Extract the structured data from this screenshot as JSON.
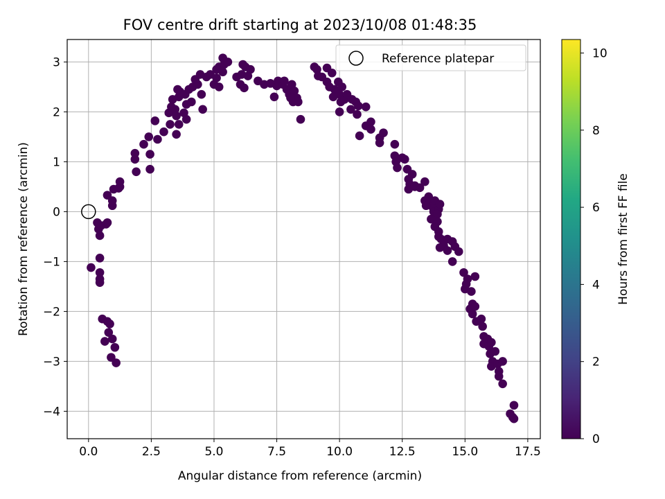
{
  "chart_data": {
    "type": "scatter",
    "title": "FOV centre drift starting at 2023/10/08 01:48:35",
    "xlabel": "Angular distance from reference (arcmin)",
    "ylabel": "Rotation from reference (arcmin)",
    "xlim": [
      -0.85,
      18.0
    ],
    "ylim": [
      -4.55,
      3.45
    ],
    "xticks": [
      "0.0",
      "2.5",
      "5.0",
      "7.5",
      "10.0",
      "12.5",
      "15.0",
      "17.5"
    ],
    "xtick_values": [
      0,
      2.5,
      5,
      7.5,
      10,
      12.5,
      15,
      17.5
    ],
    "yticks": [
      "3",
      "2",
      "1",
      "0",
      "−1",
      "−2",
      "−3",
      "−4"
    ],
    "ytick_values": [
      3,
      2,
      1,
      0,
      -1,
      -2,
      -3,
      -4
    ],
    "grid": true,
    "legend": {
      "position": "top-right",
      "label": "Reference platepar"
    },
    "reference_point": {
      "x": 0,
      "y": 0
    },
    "colorbar": {
      "label": "Hours from first FF file",
      "range": [
        0,
        10.35
      ],
      "ticks": [
        "0",
        "2",
        "4",
        "6",
        "8",
        "10"
      ],
      "tick_values": [
        0,
        2,
        4,
        6,
        8,
        10
      ],
      "colormap": "viridis"
    },
    "series": [
      {
        "columns": [
          "x",
          "y",
          "hours"
        ],
        "points": [
          [
            1.1,
            -3.03
          ],
          [
            0.9,
            -2.92
          ],
          [
            1.05,
            -2.72
          ],
          [
            0.65,
            -2.6
          ],
          [
            0.95,
            -2.55
          ],
          [
            0.8,
            -2.42
          ],
          [
            0.85,
            -2.25
          ],
          [
            0.75,
            -2.2
          ],
          [
            0.55,
            -2.15
          ],
          [
            0.45,
            -1.42
          ],
          [
            0.45,
            -1.35
          ],
          [
            0.45,
            -1.22
          ],
          [
            0.1,
            -1.12
          ],
          [
            0.45,
            -0.93
          ],
          [
            0.45,
            -0.48
          ],
          [
            0.4,
            -0.35
          ],
          [
            0.5,
            -0.28
          ],
          [
            0.7,
            -0.25
          ],
          [
            0.75,
            -0.22
          ],
          [
            0.35,
            -0.22
          ],
          [
            0.95,
            0.12
          ],
          [
            0.95,
            0.22
          ],
          [
            0.75,
            0.33
          ],
          [
            1.0,
            0.45
          ],
          [
            1.2,
            0.47
          ],
          [
            1.25,
            0.5
          ],
          [
            1.25,
            0.6
          ],
          [
            1.9,
            0.8
          ],
          [
            2.45,
            0.85
          ],
          [
            1.85,
            1.05
          ],
          [
            1.85,
            1.17
          ],
          [
            2.45,
            1.15
          ],
          [
            2.2,
            1.35
          ],
          [
            2.75,
            1.45
          ],
          [
            2.4,
            1.5
          ],
          [
            2.65,
            1.82
          ],
          [
            3.0,
            1.6
          ],
          [
            3.5,
            1.55
          ],
          [
            3.25,
            1.75
          ],
          [
            3.2,
            1.98
          ],
          [
            3.6,
            1.75
          ],
          [
            3.9,
            1.85
          ],
          [
            3.45,
            2.05
          ],
          [
            3.3,
            2.1
          ],
          [
            3.5,
            1.92
          ],
          [
            3.8,
            1.98
          ],
          [
            3.9,
            2.15
          ],
          [
            3.35,
            2.25
          ],
          [
            3.6,
            2.3
          ],
          [
            4.1,
            2.2
          ],
          [
            3.85,
            2.35
          ],
          [
            4.0,
            2.45
          ],
          [
            3.65,
            2.4
          ],
          [
            4.15,
            2.5
          ],
          [
            3.55,
            2.45
          ],
          [
            4.35,
            2.55
          ],
          [
            4.25,
            2.65
          ],
          [
            4.5,
            2.35
          ],
          [
            4.45,
            2.75
          ],
          [
            4.7,
            2.7
          ],
          [
            4.55,
            2.05
          ],
          [
            5.0,
            2.55
          ],
          [
            5.1,
            2.68
          ],
          [
            5.2,
            2.5
          ],
          [
            4.85,
            2.75
          ],
          [
            5.1,
            2.85
          ],
          [
            5.35,
            2.8
          ],
          [
            5.2,
            2.9
          ],
          [
            5.4,
            2.95
          ],
          [
            5.35,
            3.08
          ],
          [
            5.55,
            3.0
          ],
          [
            5.9,
            2.7
          ],
          [
            6.05,
            2.55
          ],
          [
            6.2,
            2.48
          ],
          [
            6.1,
            2.75
          ],
          [
            6.35,
            2.72
          ],
          [
            6.25,
            2.9
          ],
          [
            6.45,
            2.85
          ],
          [
            6.15,
            2.95
          ],
          [
            6.75,
            2.62
          ],
          [
            7.0,
            2.55
          ],
          [
            7.25,
            2.57
          ],
          [
            7.5,
            2.52
          ],
          [
            7.55,
            2.62
          ],
          [
            7.75,
            2.55
          ],
          [
            7.4,
            2.3
          ],
          [
            7.9,
            2.45
          ],
          [
            8.0,
            2.35
          ],
          [
            7.8,
            2.62
          ],
          [
            8.1,
            2.55
          ],
          [
            8.15,
            2.2
          ],
          [
            8.2,
            2.42
          ],
          [
            8.3,
            2.28
          ],
          [
            8.35,
            2.2
          ],
          [
            8.05,
            2.28
          ],
          [
            8.45,
            1.85
          ],
          [
            9.0,
            2.9
          ],
          [
            9.1,
            2.85
          ],
          [
            9.15,
            2.72
          ],
          [
            9.3,
            2.7
          ],
          [
            9.5,
            2.88
          ],
          [
            9.5,
            2.6
          ],
          [
            9.7,
            2.78
          ],
          [
            9.6,
            2.5
          ],
          [
            9.8,
            2.45
          ],
          [
            9.9,
            2.4
          ],
          [
            9.95,
            2.6
          ],
          [
            10.0,
            2.35
          ],
          [
            10.1,
            2.5
          ],
          [
            9.75,
            2.3
          ],
          [
            10.05,
            2.2
          ],
          [
            10.2,
            2.25
          ],
          [
            10.3,
            2.35
          ],
          [
            10.45,
            2.05
          ],
          [
            10.5,
            2.25
          ],
          [
            10.0,
            2.0
          ],
          [
            10.65,
            2.2
          ],
          [
            10.75,
            2.12
          ],
          [
            10.7,
            1.95
          ],
          [
            11.05,
            2.1
          ],
          [
            10.8,
            1.52
          ],
          [
            11.05,
            1.72
          ],
          [
            11.25,
            1.8
          ],
          [
            11.25,
            1.65
          ],
          [
            11.6,
            1.48
          ],
          [
            11.6,
            1.38
          ],
          [
            11.75,
            1.58
          ],
          [
            12.2,
            1.35
          ],
          [
            12.2,
            1.12
          ],
          [
            12.3,
            0.88
          ],
          [
            12.5,
            1.08
          ],
          [
            12.25,
            1.0
          ],
          [
            12.6,
            1.05
          ],
          [
            12.7,
            0.85
          ],
          [
            12.9,
            0.75
          ],
          [
            12.75,
            0.65
          ],
          [
            12.8,
            0.55
          ],
          [
            13.0,
            0.52
          ],
          [
            12.75,
            0.45
          ],
          [
            13.2,
            0.48
          ],
          [
            13.0,
            0.5
          ],
          [
            13.4,
            0.6
          ],
          [
            13.4,
            0.22
          ],
          [
            13.55,
            0.3
          ],
          [
            13.6,
            0.2
          ],
          [
            13.7,
            0.1
          ],
          [
            13.8,
            0.22
          ],
          [
            13.45,
            0.12
          ],
          [
            13.75,
            0.0
          ],
          [
            13.95,
            0.05
          ],
          [
            14.0,
            0.15
          ],
          [
            13.9,
            -0.05
          ],
          [
            13.65,
            -0.15
          ],
          [
            13.9,
            -0.2
          ],
          [
            13.8,
            -0.3
          ],
          [
            13.95,
            -0.4
          ],
          [
            14.05,
            -0.55
          ],
          [
            13.95,
            -0.5
          ],
          [
            14.3,
            -0.55
          ],
          [
            14.15,
            -0.68
          ],
          [
            14.0,
            -0.72
          ],
          [
            14.3,
            -0.78
          ],
          [
            14.5,
            -0.6
          ],
          [
            14.6,
            -0.7
          ],
          [
            14.75,
            -0.8
          ],
          [
            14.5,
            -1.0
          ],
          [
            14.95,
            -1.22
          ],
          [
            15.05,
            -1.45
          ],
          [
            15.1,
            -1.35
          ],
          [
            15.0,
            -1.55
          ],
          [
            15.4,
            -1.3
          ],
          [
            15.25,
            -1.6
          ],
          [
            15.3,
            -1.85
          ],
          [
            15.2,
            -1.95
          ],
          [
            15.4,
            -1.9
          ],
          [
            15.3,
            -2.05
          ],
          [
            15.45,
            -2.2
          ],
          [
            15.65,
            -2.15
          ],
          [
            15.7,
            -2.3
          ],
          [
            15.75,
            -2.5
          ],
          [
            15.75,
            -2.65
          ],
          [
            15.9,
            -2.55
          ],
          [
            15.95,
            -2.7
          ],
          [
            16.05,
            -2.62
          ],
          [
            16.0,
            -2.85
          ],
          [
            16.2,
            -2.8
          ],
          [
            16.1,
            -3.0
          ],
          [
            16.05,
            -3.1
          ],
          [
            16.3,
            -3.05
          ],
          [
            16.5,
            -3.0
          ],
          [
            16.35,
            -3.2
          ],
          [
            16.35,
            -3.3
          ],
          [
            16.5,
            -3.45
          ],
          [
            16.8,
            -4.05
          ],
          [
            16.9,
            -4.12
          ],
          [
            16.95,
            -3.88
          ],
          [
            16.95,
            -4.15
          ]
        ]
      }
    ]
  }
}
